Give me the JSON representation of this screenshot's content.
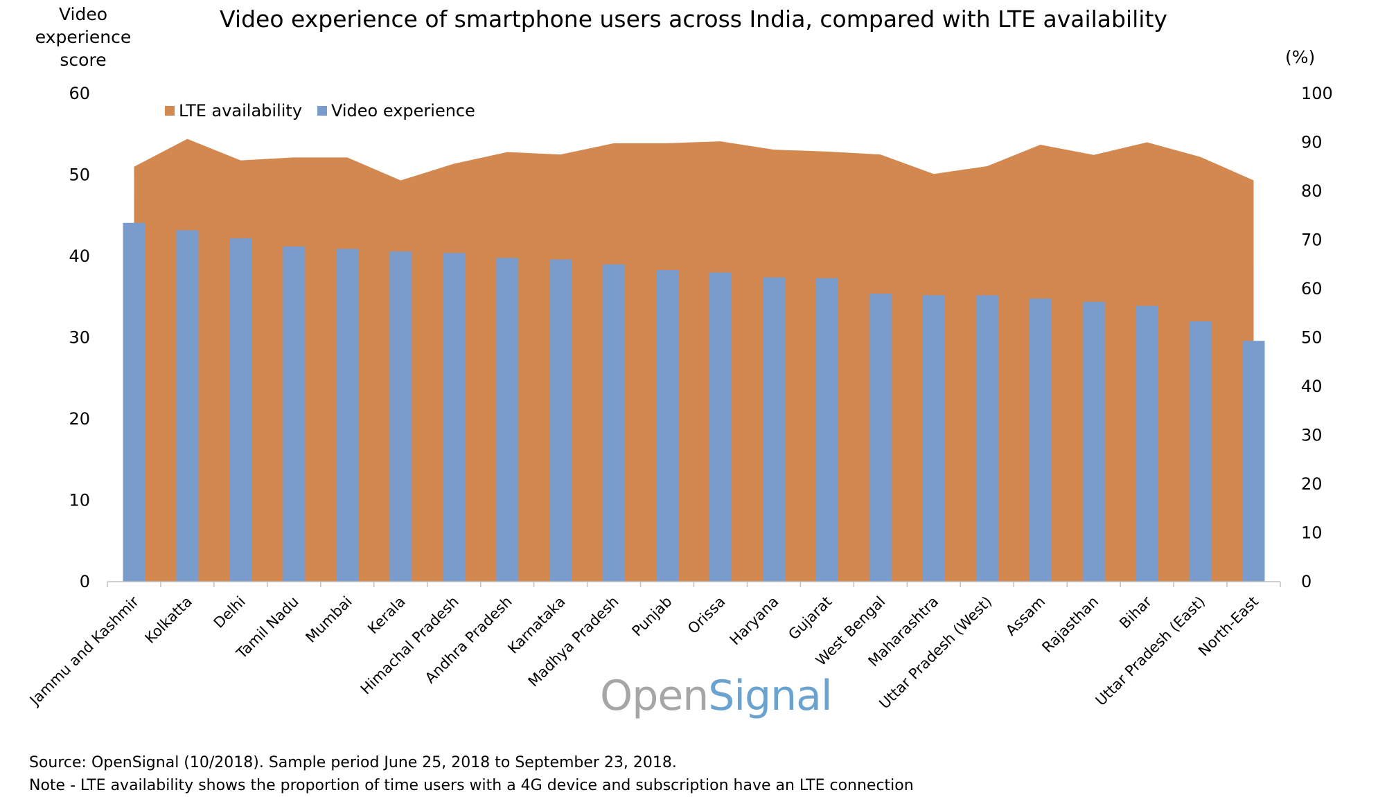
{
  "chart_data": {
    "type": "bar",
    "title": "Video experience of smartphone users across India, compared with LTE availability",
    "left_axis": {
      "label": "Video\nexperience\nscore",
      "ylim": [
        0,
        60
      ],
      "ticks": [
        "0",
        "10",
        "20",
        "30",
        "40",
        "50",
        "60"
      ]
    },
    "right_axis": {
      "label": "(%)",
      "ylim": [
        0,
        100
      ],
      "ticks": [
        "0",
        "10",
        "20",
        "30",
        "40",
        "50",
        "60",
        "70",
        "80",
        "90",
        "100"
      ]
    },
    "categories": [
      "Jammu and Kashmir",
      "Kolkatta",
      "Delhi",
      "Tamil Nadu",
      "Mumbai",
      "Kerala",
      "Himachal Pradesh",
      "Andhra Pradesh",
      "Karnataka",
      "Madhya Pradesh",
      "Punjab",
      "Orissa",
      "Haryana",
      "Gujarat",
      "West Bengal",
      "Maharashtra",
      "Uttar Pradesh (West)",
      "Assam",
      "Rajasthan",
      "Bihar",
      "Uttar Pradesh (East)",
      "North-East"
    ],
    "series": [
      {
        "name": "LTE availability",
        "type": "area",
        "axis": "right",
        "color": "#d38850",
        "values": [
          85,
          90.7,
          86.3,
          86.9,
          86.9,
          82.2,
          85.6,
          88.0,
          87.5,
          89.8,
          89.8,
          90.2,
          88.5,
          88.1,
          87.5,
          83.5,
          85.1,
          89.5,
          87.4,
          90.0,
          87.0,
          82.2
        ]
      },
      {
        "name": "Video experience",
        "type": "bar",
        "axis": "left",
        "color": "#7a9ccd",
        "values": [
          44.1,
          43.2,
          42.2,
          41.2,
          40.9,
          40.6,
          40.4,
          39.8,
          39.6,
          39.0,
          38.3,
          38.0,
          37.4,
          37.3,
          35.4,
          35.2,
          35.2,
          34.8,
          34.4,
          33.9,
          32.0,
          29.6
        ]
      }
    ],
    "legend": {
      "position": "top-left",
      "entries": [
        "LTE availability",
        "Video experience"
      ]
    },
    "grid": false
  },
  "watermark": {
    "part1": "Open",
    "part2": "Signal"
  },
  "footer": {
    "source": "Source: OpenSignal (10/2018). Sample period June 25, 2018 to September 23, 2018.",
    "note": "Note - LTE availability shows the proportion of time users with a 4G device and subscription have an LTE connection"
  }
}
